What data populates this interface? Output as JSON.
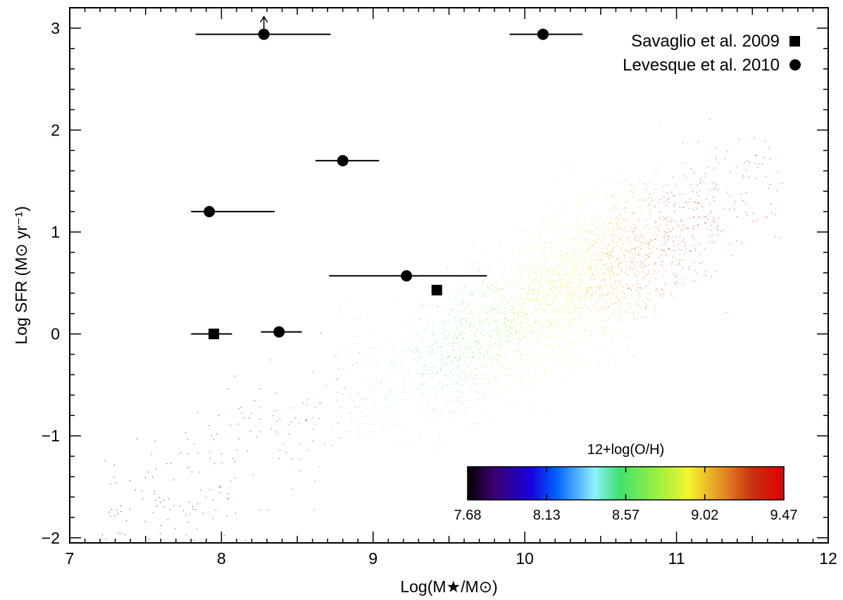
{
  "chart_data": {
    "type": "scatter",
    "title": "",
    "xlabel": "Log(M★/M⊙)",
    "ylabel": "Log SFR (M⊙ yr⁻¹)",
    "xlim": [
      7,
      12
    ],
    "ylim": [
      -2.05,
      3.2
    ],
    "x_ticks": [
      "7",
      "8",
      "9",
      "10",
      "11",
      "12"
    ],
    "y_ticks": [
      "−2",
      "−1",
      "0",
      "1",
      "2",
      "3"
    ],
    "grid": false,
    "legend_position": "top-right",
    "series": [
      {
        "name": "Savaglio et al. 2009",
        "marker": "square",
        "points": [
          {
            "x": 7.95,
            "y": 0.0,
            "xerr_low": 0.15,
            "xerr_high": 0.12
          },
          {
            "x": 9.42,
            "y": 0.43,
            "xerr_low": 0.0,
            "xerr_high": 0.0
          }
        ]
      },
      {
        "name": "Levesque et al. 2010",
        "marker": "circle",
        "points": [
          {
            "x": 8.28,
            "y": 2.94,
            "xerr_low": 0.45,
            "xerr_high": 0.44,
            "lower_limit": true
          },
          {
            "x": 10.12,
            "y": 2.94,
            "xerr_low": 0.22,
            "xerr_high": 0.26
          },
          {
            "x": 8.8,
            "y": 1.7,
            "xerr_low": 0.18,
            "xerr_high": 0.24
          },
          {
            "x": 7.92,
            "y": 1.2,
            "xerr_low": 0.12,
            "xerr_high": 0.43
          },
          {
            "x": 9.22,
            "y": 0.57,
            "xerr_low": 0.51,
            "xerr_high": 0.53
          },
          {
            "x": 8.38,
            "y": 0.02,
            "xerr_low": 0.12,
            "xerr_high": 0.15
          }
        ]
      }
    ],
    "background_population": {
      "description_of_shape": "dense colour-coded point cloud along main sequence",
      "trend_slope": 0.77,
      "trend_intercept": -7.47,
      "x_range": [
        7.1,
        11.7
      ],
      "color_by": "12+log(O/H)"
    },
    "colorbar": {
      "title": "12+log(O/H)",
      "ticks": [
        "7.68",
        "8.13",
        "8.57",
        "9.02",
        "9.47"
      ],
      "range": [
        7.68,
        9.47
      ],
      "colormap": "rainbow"
    }
  }
}
